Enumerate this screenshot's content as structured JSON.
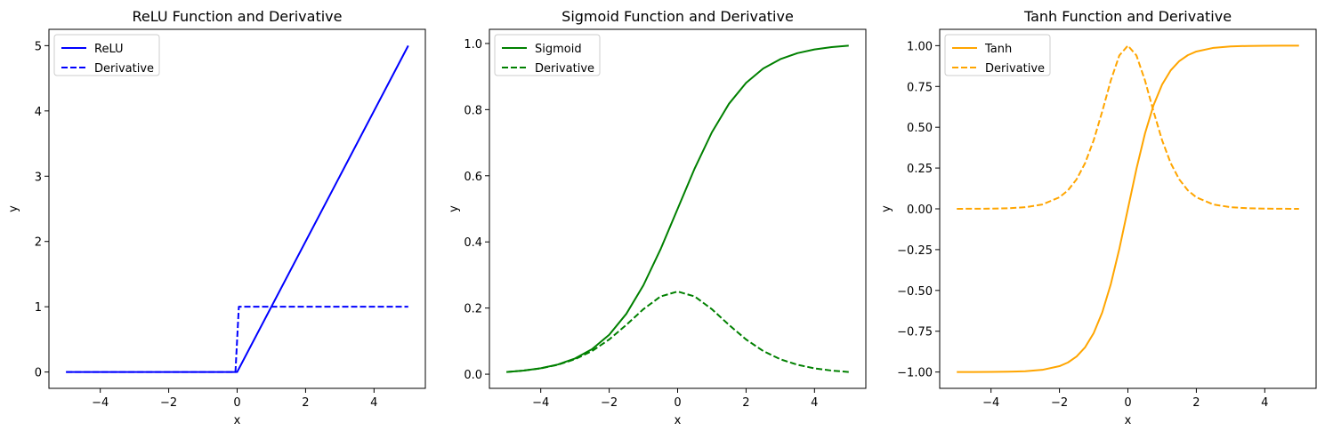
{
  "chart_data": [
    {
      "type": "line",
      "title": "ReLU Function and Derivative",
      "xlabel": "x",
      "ylabel": "y",
      "xlim": [
        -5.5,
        5.5
      ],
      "ylim": [
        -0.25,
        5.25
      ],
      "xticks": [
        -4,
        -2,
        0,
        2,
        4
      ],
      "xtick_labels": [
        "−4",
        "−2",
        "0",
        "2",
        "4"
      ],
      "yticks": [
        0,
        1,
        2,
        3,
        4,
        5
      ],
      "ytick_labels": [
        "0",
        "1",
        "2",
        "3",
        "4",
        "5"
      ],
      "grid": false,
      "legend_position": "upper-left",
      "series": [
        {
          "name": "ReLU",
          "color": "#0000ff",
          "dash": "solid",
          "x": [
            -5,
            0,
            5
          ],
          "y": [
            0,
            0,
            5
          ]
        },
        {
          "name": "Derivative",
          "color": "#0000ff",
          "dash": "dashed",
          "x": [
            -5,
            -0.05,
            0.05,
            5
          ],
          "y": [
            0,
            0,
            1,
            1
          ]
        }
      ]
    },
    {
      "type": "line",
      "title": "Sigmoid Function and Derivative",
      "xlabel": "x",
      "ylabel": "y",
      "xlim": [
        -5.5,
        5.5
      ],
      "ylim": [
        -0.0428,
        1.0428
      ],
      "xticks": [
        -4,
        -2,
        0,
        2,
        4
      ],
      "xtick_labels": [
        "−4",
        "−2",
        "0",
        "2",
        "4"
      ],
      "yticks": [
        0,
        0.2,
        0.4,
        0.6,
        0.8,
        1.0
      ],
      "ytick_labels": [
        "0.0",
        "0.2",
        "0.4",
        "0.6",
        "0.8",
        "1.0"
      ],
      "grid": false,
      "legend_position": "upper-left",
      "series": [
        {
          "name": "Sigmoid",
          "color": "#008000",
          "dash": "solid",
          "x": [
            -5,
            -4.5,
            -4,
            -3.5,
            -3,
            -2.5,
            -2,
            -1.5,
            -1,
            -0.5,
            0,
            0.5,
            1,
            1.5,
            2,
            2.5,
            3,
            3.5,
            4,
            4.5,
            5
          ],
          "y": [
            0.0067,
            0.011,
            0.018,
            0.0293,
            0.0474,
            0.0759,
            0.1192,
            0.1824,
            0.2689,
            0.3775,
            0.5,
            0.6225,
            0.7311,
            0.8176,
            0.8808,
            0.9241,
            0.9526,
            0.9707,
            0.982,
            0.989,
            0.9933
          ]
        },
        {
          "name": "Derivative",
          "color": "#008000",
          "dash": "dashed",
          "x": [
            -5,
            -4.5,
            -4,
            -3.5,
            -3,
            -2.5,
            -2,
            -1.5,
            -1,
            -0.5,
            0,
            0.5,
            1,
            1.5,
            2,
            2.5,
            3,
            3.5,
            4,
            4.5,
            5
          ],
          "y": [
            0.0066,
            0.0109,
            0.0177,
            0.0285,
            0.0452,
            0.0701,
            0.105,
            0.1491,
            0.1966,
            0.235,
            0.25,
            0.235,
            0.1966,
            0.1491,
            0.105,
            0.0701,
            0.0452,
            0.0285,
            0.0177,
            0.0109,
            0.0066
          ]
        }
      ]
    },
    {
      "type": "line",
      "title": "Tanh Function and Derivative",
      "xlabel": "x",
      "ylabel": "y",
      "xlim": [
        -5.5,
        5.5
      ],
      "ylim": [
        -1.1,
        1.1
      ],
      "xticks": [
        -4,
        -2,
        0,
        2,
        4
      ],
      "xtick_labels": [
        "−4",
        "−2",
        "0",
        "2",
        "4"
      ],
      "yticks": [
        -1.0,
        -0.75,
        -0.5,
        -0.25,
        0,
        0.25,
        0.5,
        0.75,
        1.0
      ],
      "ytick_labels": [
        "−1.00",
        "−0.75",
        "−0.50",
        "−0.25",
        "0.00",
        "0.25",
        "0.50",
        "0.75",
        "1.00"
      ],
      "grid": false,
      "legend_position": "upper-left",
      "series": [
        {
          "name": "Tanh",
          "color": "#ffa500",
          "dash": "solid",
          "x": [
            -5,
            -4.5,
            -4,
            -3.5,
            -3,
            -2.5,
            -2,
            -1.75,
            -1.5,
            -1.25,
            -1,
            -0.75,
            -0.5,
            -0.25,
            0,
            0.25,
            0.5,
            0.75,
            1,
            1.25,
            1.5,
            1.75,
            2,
            2.5,
            3,
            3.5,
            4,
            4.5,
            5
          ],
          "y": [
            -0.9999,
            -0.9998,
            -0.9993,
            -0.9982,
            -0.9951,
            -0.9866,
            -0.964,
            -0.9414,
            -0.9051,
            -0.8483,
            -0.7616,
            -0.6351,
            -0.4621,
            -0.2449,
            0,
            0.2449,
            0.4621,
            0.6351,
            0.7616,
            0.8483,
            0.9051,
            0.9414,
            0.964,
            0.9866,
            0.9951,
            0.9982,
            0.9993,
            0.9998,
            0.9999
          ]
        },
        {
          "name": "Derivative",
          "color": "#ffa500",
          "dash": "dashed",
          "x": [
            -5,
            -4.5,
            -4,
            -3.5,
            -3,
            -2.5,
            -2,
            -1.75,
            -1.5,
            -1.25,
            -1,
            -0.75,
            -0.5,
            -0.25,
            0,
            0.25,
            0.5,
            0.75,
            1,
            1.25,
            1.5,
            1.75,
            2,
            2.5,
            3,
            3.5,
            4,
            4.5,
            5
          ],
          "y": [
            0.0002,
            0.0005,
            0.0013,
            0.0036,
            0.0099,
            0.0266,
            0.0707,
            0.1138,
            0.1807,
            0.2804,
            0.42,
            0.5966,
            0.7864,
            0.94,
            1.0,
            0.94,
            0.7864,
            0.5966,
            0.42,
            0.2804,
            0.1807,
            0.1138,
            0.0707,
            0.0266,
            0.0099,
            0.0036,
            0.0013,
            0.0005,
            0.0002
          ]
        }
      ]
    }
  ]
}
